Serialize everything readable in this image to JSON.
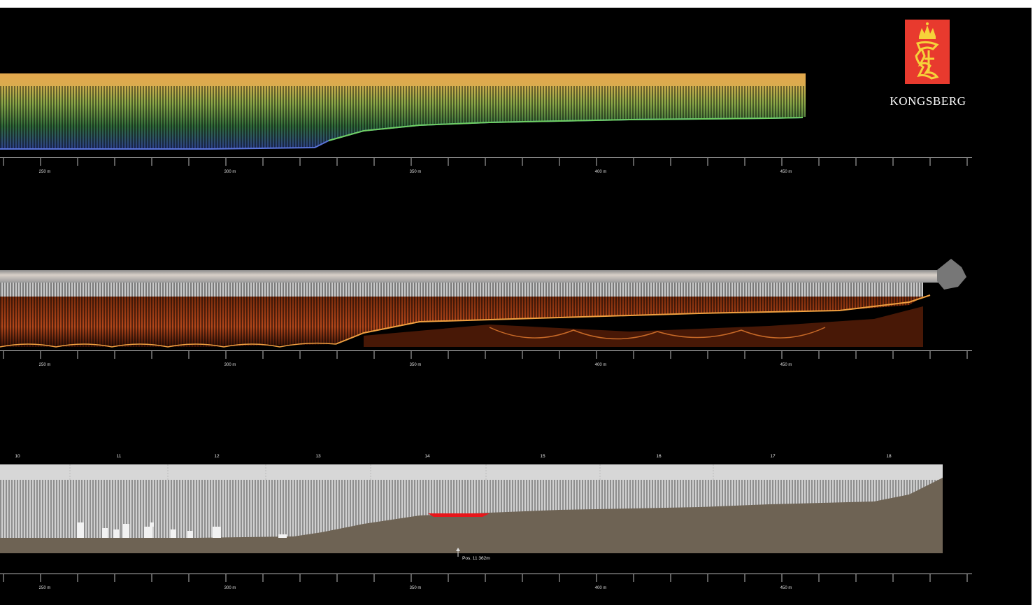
{
  "brand": {
    "name": "KONGSBERG",
    "logo_icon": "kongsberg-crown-lion-icon",
    "logo_color": "#e83a2e"
  },
  "scale_labels": [
    "250 m",
    "300 m",
    "350 m",
    "400 m",
    "450 m"
  ],
  "pillar_labels": [
    "10",
    "11",
    "12",
    "13",
    "14",
    "15",
    "16",
    "17",
    "18"
  ],
  "annotation": "Pos. 11  362m",
  "colors": {
    "background": "#000000",
    "seabed": "#6e6354",
    "wall": "#d9d9d9",
    "highlight": "#e8161b",
    "depth_top": "#e9a54a",
    "depth_mid": "#8fb04a",
    "depth_bottom": "#3b4ea8",
    "sonar": "#c85a1c"
  }
}
